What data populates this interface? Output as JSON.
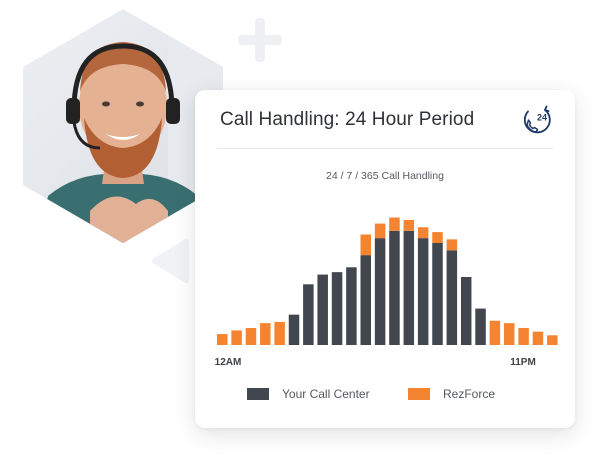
{
  "card": {
    "title": "Call Handling: 24 Hour Period",
    "badge_text": "24"
  },
  "colors": {
    "call_center": "#42464f",
    "rezforce": "#f58431",
    "title": "#2e3137",
    "icon": "#1f3a68",
    "deco": "#eef0f3"
  },
  "icons": {
    "badge": "phone-24-icon",
    "decoration": "plus-icon",
    "play": "play-triangle-icon"
  },
  "photo": {
    "subject": "smiling support agent wearing a headset"
  },
  "chart_data": {
    "type": "bar",
    "stacked": true,
    "title": "24 / 7 / 365 Call Handling",
    "xlabel": "",
    "ylabel": "",
    "ylim": [
      0,
      140
    ],
    "grid": false,
    "legend_position": "bottom",
    "x_tick_labels": {
      "first": "12AM",
      "last": "11PM"
    },
    "categories": [
      "0",
      "1",
      "2",
      "3",
      "4",
      "5",
      "6",
      "7",
      "8",
      "9",
      "10",
      "11",
      "12",
      "13",
      "14",
      "15",
      "16",
      "17",
      "18",
      "19",
      "20",
      "21",
      "22",
      "23"
    ],
    "series": [
      {
        "name": "Your Call Center",
        "color": "#42464f",
        "values": [
          0,
          0,
          0,
          0,
          0,
          25,
          50,
          58,
          60,
          64,
          74,
          88,
          94,
          94,
          88,
          84,
          78,
          56,
          30,
          0,
          0,
          0,
          0,
          0
        ]
      },
      {
        "name": "RezForce",
        "color": "#f58431",
        "values": [
          9,
          12,
          14,
          18,
          19,
          0,
          0,
          0,
          0,
          0,
          17,
          12,
          11,
          9,
          9,
          9,
          9,
          0,
          0,
          20,
          18,
          14,
          11,
          8
        ]
      }
    ]
  }
}
